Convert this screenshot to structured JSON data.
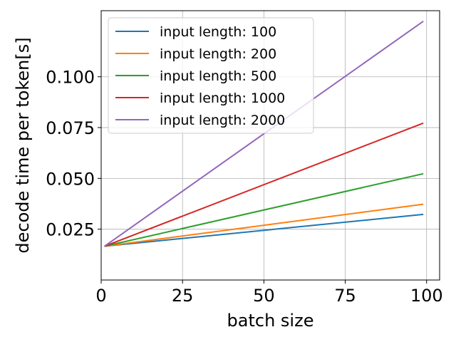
{
  "chart_data": {
    "type": "line",
    "xlabel": "batch size",
    "ylabel": "decode time per token[s]",
    "xlim": [
      0,
      104
    ],
    "ylim": [
      0.0,
      0.1325
    ],
    "xticks": [
      0,
      25,
      50,
      75,
      100
    ],
    "xtick_labels": [
      "0",
      "25",
      "50",
      "75",
      "100"
    ],
    "yticks": [
      0.025,
      0.05,
      0.075,
      0.1
    ],
    "ytick_labels": [
      "0.025",
      "0.050",
      "0.075",
      "0.100"
    ],
    "grid": true,
    "legend_position": "top-left",
    "series": [
      {
        "name": "input length: 100",
        "color": "#1f77b4",
        "x": [
          1,
          99
        ],
        "y": [
          0.0166,
          0.0323
        ]
      },
      {
        "name": "input length: 200",
        "color": "#ff7f0e",
        "x": [
          1,
          99
        ],
        "y": [
          0.0166,
          0.0373
        ]
      },
      {
        "name": "input length: 500",
        "color": "#2ca02c",
        "x": [
          1,
          99
        ],
        "y": [
          0.0166,
          0.0523
        ]
      },
      {
        "name": "input length: 1000",
        "color": "#d62728",
        "x": [
          1,
          99
        ],
        "y": [
          0.0166,
          0.0772
        ]
      },
      {
        "name": "input length: 2000",
        "color": "#9467bd",
        "x": [
          1,
          99
        ],
        "y": [
          0.0166,
          0.1273
        ]
      }
    ]
  }
}
